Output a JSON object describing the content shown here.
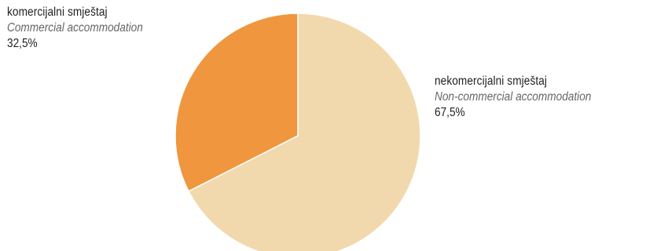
{
  "chart_data": {
    "type": "pie",
    "slices": [
      {
        "label_hr": "komercijalni smještaj",
        "label_en": "Commercial accommodation",
        "value_label": "32,5%",
        "value": 32.5,
        "color": "#F0963E"
      },
      {
        "label_hr": "nekomercijalni smještaj",
        "label_en": "Non-commercial accommodation",
        "value_label": "67,5%",
        "value": 67.5,
        "color": "#F2D9AD"
      }
    ]
  }
}
